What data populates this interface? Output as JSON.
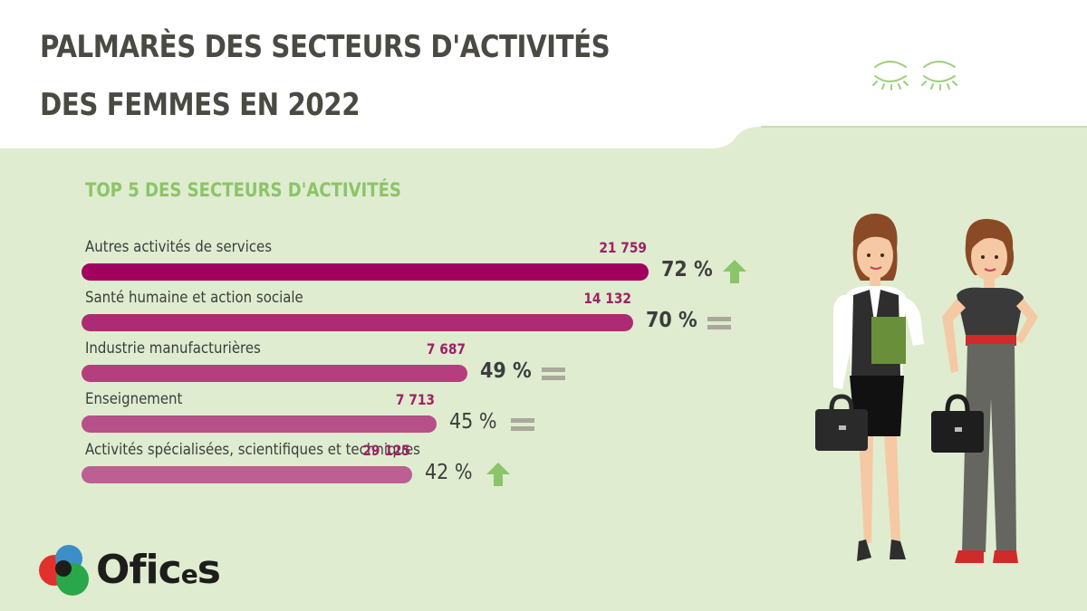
{
  "header": {
    "title_line1": "PALMARÈS DES SECTEURS D'ACTIVITÉS",
    "title_line2": "DES FEMMES EN 2022"
  },
  "chart_data": {
    "type": "bar",
    "orientation": "horizontal",
    "title": "TOP 5 DES SECTEURS D'ACTIVITÉS",
    "xlim": [
      0,
      100
    ],
    "bars": [
      {
        "category": "Autres activités de services",
        "count": "21 759",
        "percent": 72,
        "percent_label": "72 %",
        "trend": "up",
        "color": "#a1005d",
        "bold": true
      },
      {
        "category": "Santé humaine et action sociale",
        "count": "14 132",
        "percent": 70,
        "percent_label": "70 %",
        "trend": "equal",
        "color": "#ac2c73",
        "bold": true
      },
      {
        "category": "Industrie manufacturières",
        "count": "7 687",
        "percent": 49,
        "percent_label": "49 %",
        "trend": "equal",
        "color": "#b53e7e",
        "bold": true
      },
      {
        "category": "Enseignement",
        "count": "7 713",
        "percent": 45,
        "percent_label": "45 %",
        "trend": "equal",
        "color": "#b74f89",
        "bold": false
      },
      {
        "category": "Activités spécialisées, scientifiques et techniques",
        "count": "29 125",
        "percent": 42,
        "percent_label": "42 %",
        "trend": "up",
        "color": "#bd5f92",
        "bold": false
      }
    ]
  },
  "icons": {
    "trend_up": "arrow-up-icon",
    "trend_equal": "equals-icon"
  },
  "colors": {
    "background": "#dfeccf",
    "header_bg": "#ffffff",
    "accent_green": "#8cc46a",
    "trend_up": "#8cc46a",
    "trend_equal": "#a9a89a",
    "title": "#4a4a43"
  },
  "brand": {
    "logo_text_main": "Ofic",
    "logo_text_small": "e",
    "logo_text_end": "s",
    "colors": [
      "#e2312d",
      "#3b8ec9",
      "#2aa64b",
      "#1d1d1b"
    ]
  }
}
